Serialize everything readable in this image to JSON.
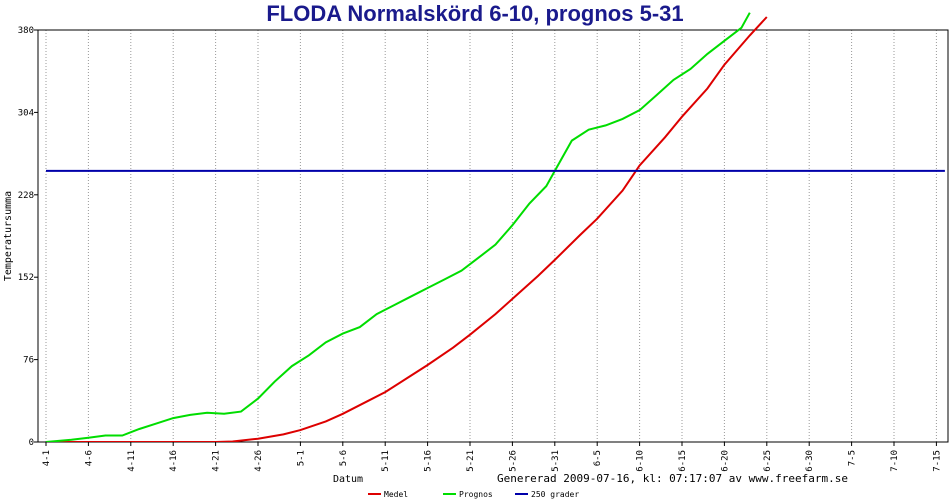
{
  "chart_data": {
    "type": "line",
    "title": "FLODA Normalskörd 6-10, prognos 5-31",
    "xlabel": "Datum",
    "ylabel": "Temperatursumma",
    "footer": "Genererad 2009-07-16, kl: 07:17:07 av www.freefarm.se",
    "y_ticks": [
      "0",
      "76",
      "152",
      "228",
      "304",
      "380"
    ],
    "ylim": [
      0,
      380
    ],
    "x_ticks": [
      "4-1",
      "4-6",
      "4-11",
      "4-16",
      "4-21",
      "4-26",
      "5-1",
      "5-6",
      "5-11",
      "5-16",
      "5-21",
      "5-26",
      "5-31",
      "6-5",
      "6-10",
      "6-15",
      "6-20",
      "6-25",
      "6-30",
      "7-5",
      "7-10",
      "7-15"
    ],
    "x_tick_day": [
      0,
      5,
      10,
      15,
      20,
      25,
      30,
      35,
      40,
      45,
      50,
      55,
      60,
      65,
      70,
      75,
      80,
      85,
      90,
      95,
      100,
      105
    ],
    "x_range": [
      0,
      106
    ],
    "grid": "vertical dotted",
    "legend_position": "bottom",
    "series": [
      {
        "name": "Medel",
        "color": "#dd0000",
        "day": [
          0,
          5,
          10,
          15,
          20,
          22,
          25,
          28,
          30,
          33,
          35,
          38,
          40,
          43,
          45,
          48,
          50,
          53,
          55,
          58,
          60,
          63,
          65,
          68,
          70,
          73,
          75,
          78,
          80,
          83,
          85
        ],
        "values": [
          0,
          0,
          0,
          0,
          0,
          0.5,
          3,
          7,
          11,
          19,
          26,
          38,
          46,
          61,
          71,
          87,
          99,
          118,
          132,
          153,
          168,
          191,
          206,
          232,
          255,
          281,
          300,
          326,
          348,
          375,
          392
        ]
      },
      {
        "name": "Prognos",
        "color": "#00dd00",
        "day": [
          0,
          3,
          5,
          7,
          9,
          11,
          13,
          15,
          17,
          19,
          21,
          23,
          25,
          27,
          29,
          31,
          33,
          35,
          37,
          39,
          41,
          43,
          45,
          47,
          49,
          51,
          53,
          55,
          57,
          59,
          60,
          62,
          64,
          66,
          68,
          70,
          72,
          74,
          76,
          78,
          80,
          82,
          83
        ],
        "values": [
          0,
          2,
          4,
          6,
          6,
          12,
          17,
          22,
          25,
          27,
          26,
          28,
          40,
          56,
          70,
          80,
          92,
          100,
          106,
          118,
          126,
          134,
          142,
          150,
          158,
          170,
          182,
          200,
          220,
          236,
          250,
          278,
          288,
          292,
          298,
          306,
          320,
          334,
          344,
          358,
          370,
          382,
          396
        ]
      },
      {
        "name": "250 grader",
        "color": "#0000aa",
        "day": [
          0,
          106
        ],
        "values": [
          250,
          250
        ]
      }
    ]
  }
}
